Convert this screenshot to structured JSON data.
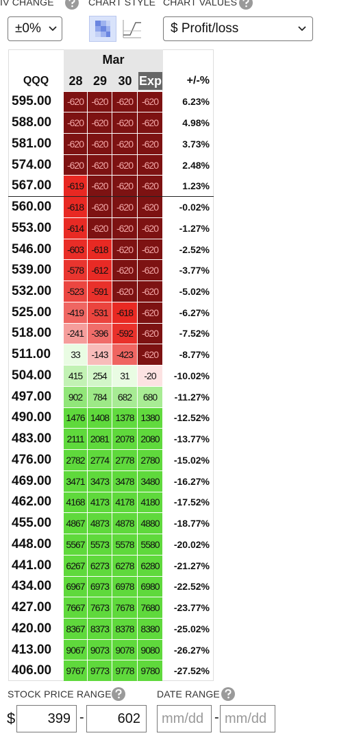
{
  "controls": {
    "iv_change": {
      "label": "IV CHANGE",
      "value": "±0%"
    },
    "chart_style": {
      "label": "CHART STYLE"
    },
    "chart_values": {
      "label": "CHART VALUES",
      "value": "$ Profit/loss"
    }
  },
  "table": {
    "month": "Mar",
    "symbol": "QQQ",
    "columns": [
      "28",
      "29",
      "30",
      "Exp"
    ],
    "change_header": "+/-%",
    "rows": [
      {
        "price": "595.00",
        "values": [
          -620,
          -620,
          -620,
          -620
        ],
        "change": "6.23%"
      },
      {
        "price": "588.00",
        "values": [
          -620,
          -620,
          -620,
          -620
        ],
        "change": "4.98%"
      },
      {
        "price": "581.00",
        "values": [
          -620,
          -620,
          -620,
          -620
        ],
        "change": "3.73%"
      },
      {
        "price": "574.00",
        "values": [
          -620,
          -620,
          -620,
          -620
        ],
        "change": "2.48%"
      },
      {
        "price": "567.00",
        "values": [
          -619,
          -620,
          -620,
          -620
        ],
        "change": "1.23%"
      },
      {
        "price": "560.00",
        "values": [
          -618,
          -620,
          -620,
          -620
        ],
        "change": "-0.02%"
      },
      {
        "price": "553.00",
        "values": [
          -614,
          -620,
          -620,
          -620
        ],
        "change": "-1.27%"
      },
      {
        "price": "546.00",
        "values": [
          -603,
          -618,
          -620,
          -620
        ],
        "change": "-2.52%"
      },
      {
        "price": "539.00",
        "values": [
          -578,
          -612,
          -620,
          -620
        ],
        "change": "-3.77%"
      },
      {
        "price": "532.00",
        "values": [
          -523,
          -591,
          -620,
          -620
        ],
        "change": "-5.02%"
      },
      {
        "price": "525.00",
        "values": [
          -419,
          -531,
          -618,
          -620
        ],
        "change": "-6.27%"
      },
      {
        "price": "518.00",
        "values": [
          -241,
          -396,
          -592,
          -620
        ],
        "change": "-7.52%"
      },
      {
        "price": "511.00",
        "values": [
          33,
          -143,
          -423,
          -620
        ],
        "change": "-8.77%"
      },
      {
        "price": "504.00",
        "values": [
          415,
          254,
          31,
          -20
        ],
        "change": "-10.02%"
      },
      {
        "price": "497.00",
        "values": [
          902,
          784,
          682,
          680
        ],
        "change": "-11.27%"
      },
      {
        "price": "490.00",
        "values": [
          1476,
          1408,
          1378,
          1380
        ],
        "change": "-12.52%"
      },
      {
        "price": "483.00",
        "values": [
          2111,
          2081,
          2078,
          2080
        ],
        "change": "-13.77%"
      },
      {
        "price": "476.00",
        "values": [
          2782,
          2774,
          2778,
          2780
        ],
        "change": "-15.02%"
      },
      {
        "price": "469.00",
        "values": [
          3471,
          3473,
          3478,
          3480
        ],
        "change": "-16.27%"
      },
      {
        "price": "462.00",
        "values": [
          4168,
          4173,
          4178,
          4180
        ],
        "change": "-17.52%"
      },
      {
        "price": "455.00",
        "values": [
          4867,
          4873,
          4878,
          4880
        ],
        "change": "-18.77%"
      },
      {
        "price": "448.00",
        "values": [
          5567,
          5573,
          5578,
          5580
        ],
        "change": "-20.02%"
      },
      {
        "price": "441.00",
        "values": [
          6267,
          6273,
          6278,
          6280
        ],
        "change": "-21.27%"
      },
      {
        "price": "434.00",
        "values": [
          6967,
          6973,
          6978,
          6980
        ],
        "change": "-22.52%"
      },
      {
        "price": "427.00",
        "values": [
          7667,
          7673,
          7678,
          7680
        ],
        "change": "-23.77%"
      },
      {
        "price": "420.00",
        "values": [
          8367,
          8373,
          8378,
          8380
        ],
        "change": "-25.02%"
      },
      {
        "price": "413.00",
        "values": [
          9067,
          9073,
          9078,
          9080
        ],
        "change": "-26.27%"
      },
      {
        "price": "406.00",
        "values": [
          9767,
          9773,
          9778,
          9780
        ],
        "change": "-27.52%"
      }
    ]
  },
  "footer": {
    "stock_price_range": {
      "label": "STOCK PRICE RANGE",
      "currency": "$",
      "low": "399",
      "separator": "-",
      "high": "602"
    },
    "date_range": {
      "label": "DATE RANGE",
      "start": "mm/dd",
      "separator": "-",
      "end": "mm/dd"
    }
  }
}
